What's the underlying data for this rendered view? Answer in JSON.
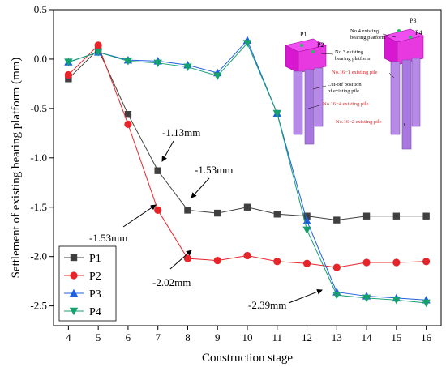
{
  "chart_data": {
    "type": "line",
    "xlabel": "Construction stage",
    "ylabel": "Settlement of existing bearing platform  (mm)",
    "xlim": [
      3.5,
      16.5
    ],
    "ylim": [
      -2.7,
      0.5
    ],
    "x_ticks": [
      4,
      5,
      6,
      7,
      8,
      9,
      10,
      11,
      12,
      13,
      14,
      15,
      16
    ],
    "y_ticks": [
      0.5,
      0.0,
      -0.5,
      -1.0,
      -1.5,
      -2.0,
      -2.5
    ],
    "y_tick_labels": [
      "0.5",
      "0.0",
      "-0.5",
      "-1.0",
      "-1.5",
      "-2.0",
      "-2.5"
    ],
    "grid": false,
    "legend_position": "bottom-left",
    "x": [
      4,
      5,
      6,
      7,
      8,
      9,
      10,
      11,
      12,
      13,
      14,
      15,
      16
    ],
    "series": [
      {
        "name": "P1",
        "color": "#404040",
        "marker": "square",
        "values": [
          -0.2,
          0.1,
          -0.56,
          -1.13,
          -1.53,
          -1.56,
          -1.5,
          -1.57,
          -1.59,
          -1.63,
          -1.59,
          -1.59,
          -1.59
        ]
      },
      {
        "name": "P2",
        "color": "#e8242a",
        "marker": "circle",
        "values": [
          -0.16,
          0.14,
          -0.66,
          -1.53,
          -2.02,
          -2.04,
          -1.99,
          -2.05,
          -2.07,
          -2.11,
          -2.06,
          -2.06,
          -2.05
        ]
      },
      {
        "name": "P3",
        "color": "#1f5fe0",
        "marker": "triangle-up",
        "values": [
          -0.03,
          0.07,
          -0.01,
          -0.02,
          -0.06,
          -0.14,
          0.19,
          -0.55,
          -1.64,
          -2.36,
          -2.4,
          -2.42,
          -2.44
        ]
      },
      {
        "name": "P4",
        "color": "#15a06e",
        "marker": "triangle-down",
        "values": [
          -0.03,
          0.07,
          -0.02,
          -0.04,
          -0.08,
          -0.17,
          0.16,
          -0.55,
          -1.73,
          -2.39,
          -2.42,
          -2.44,
          -2.47
        ]
      }
    ],
    "annotations": [
      {
        "text": "-1.13mm",
        "x": 7,
        "y": -1.13
      },
      {
        "text": "-1.53mm",
        "x": 8,
        "y": -1.53
      },
      {
        "text": "-1.53mm",
        "x": 7,
        "y": -1.53
      },
      {
        "text": "-2.02mm",
        "x": 8,
        "y": -2.02
      },
      {
        "text": "-2.39mm",
        "x": 13,
        "y": -2.39
      }
    ],
    "inset": {
      "labels": {
        "p1": "P1",
        "p2": "P2",
        "p3": "P3",
        "p4": "P4",
        "no4_line1": "No.4 existing",
        "no4_line2": "bearing platform",
        "no3_line1": "No.3 existing",
        "no3_line2": "bearing platform",
        "cutoff_line1": "Cut-off position",
        "cutoff_line2": "of existing pile",
        "pile_no16_1": "No.16−1 existing pile",
        "pile_no16_4": "No.16−4 existing pile",
        "pile_no16_2": "No.16−2 existing pile"
      },
      "platform_color": "#e020d8",
      "pile_color": "#b080e8"
    }
  }
}
